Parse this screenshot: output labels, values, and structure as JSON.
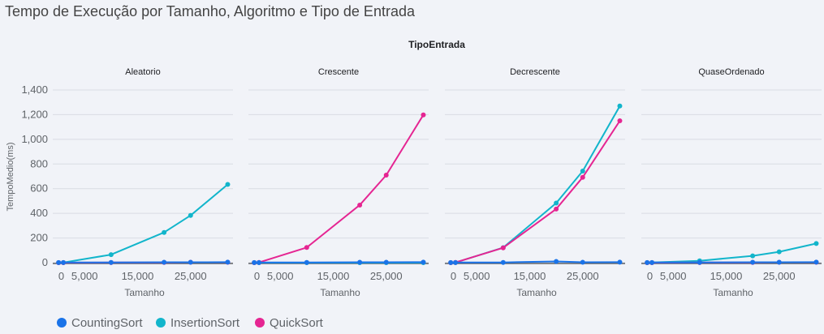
{
  "chart_data": {
    "type": "line",
    "title": "Tempo de Execução por Tamanho, Algoritmo e Tipo de Entrada",
    "facet_label": "TipoEntrada",
    "xlabel": "Tamanho",
    "ylabel": "TempoMedio(ms)",
    "ylim": [
      0,
      1400
    ],
    "yticks": [
      0,
      200,
      400,
      600,
      800,
      1000,
      1200,
      1400
    ],
    "ytick_labels": [
      "0",
      "200",
      "400",
      "600",
      "800",
      "1,000",
      "1,200",
      "1,400"
    ],
    "xlim": [
      -1000,
      33000
    ],
    "xticks": [
      0,
      5000,
      15000,
      25000
    ],
    "xtick_labels": [
      "0",
      "5,000",
      "15,000",
      "25,000"
    ],
    "grid": true,
    "legend_position": "bottom-left",
    "colors": {
      "CountingSort": "#1a73e8",
      "InsertionSort": "#12b5cb",
      "QuickSort": "#e52592"
    },
    "facets": [
      {
        "name": "Aleatorio",
        "series": [
          {
            "name": "CountingSort",
            "x": [
              100,
              1000,
              10000,
              20000,
              25000,
              32000
            ],
            "values": [
              1,
              1,
              2,
              3,
              3,
              4
            ]
          },
          {
            "name": "InsertionSort",
            "x": [
              100,
              1000,
              10000,
              20000,
              25000,
              32000
            ],
            "values": [
              0,
              1,
              65,
              245,
              383,
              634
            ]
          },
          {
            "name": "QuickSort",
            "x": [
              100,
              1000,
              10000,
              20000,
              25000,
              32000
            ],
            "values": [
              0,
              0,
              1,
              2,
              3,
              3
            ]
          }
        ]
      },
      {
        "name": "Crescente",
        "series": [
          {
            "name": "CountingSort",
            "x": [
              100,
              1000,
              10000,
              20000,
              25000,
              32000
            ],
            "values": [
              1,
              1,
              2,
              3,
              3,
              4
            ]
          },
          {
            "name": "InsertionSort",
            "x": [
              100,
              1000,
              10000,
              20000,
              25000,
              32000
            ],
            "values": [
              0,
              0,
              0,
              0,
              0,
              0
            ]
          },
          {
            "name": "QuickSort",
            "x": [
              100,
              1000,
              10000,
              20000,
              25000,
              32000
            ],
            "values": [
              0,
              2,
              123,
              467,
              710,
              1198
            ]
          }
        ]
      },
      {
        "name": "Decrescente",
        "series": [
          {
            "name": "CountingSort",
            "x": [
              100,
              1000,
              10000,
              20000,
              25000,
              32000
            ],
            "values": [
              1,
              1,
              2,
              10,
              3,
              4
            ]
          },
          {
            "name": "InsertionSort",
            "x": [
              100,
              1000,
              10000,
              20000,
              25000,
              32000
            ],
            "values": [
              0,
              1,
              122,
              483,
              743,
              1270
            ]
          },
          {
            "name": "QuickSort",
            "x": [
              100,
              1000,
              10000,
              20000,
              25000,
              32000
            ],
            "values": [
              0,
              2,
              120,
              435,
              692,
              1150
            ]
          }
        ]
      },
      {
        "name": "QuaseOrdenado",
        "series": [
          {
            "name": "CountingSort",
            "x": [
              100,
              1000,
              10000,
              20000,
              25000,
              32000
            ],
            "values": [
              1,
              1,
              2,
              3,
              3,
              4
            ]
          },
          {
            "name": "InsertionSort",
            "x": [
              100,
              1000,
              10000,
              20000,
              25000,
              32000
            ],
            "values": [
              0,
              1,
              15,
              55,
              88,
              155
            ]
          },
          {
            "name": "QuickSort",
            "x": [
              100,
              1000,
              10000,
              20000,
              25000,
              32000
            ],
            "values": [
              0,
              0,
              1,
              2,
              3,
              3
            ]
          }
        ]
      }
    ],
    "legend": [
      "CountingSort",
      "InsertionSort",
      "QuickSort"
    ]
  }
}
